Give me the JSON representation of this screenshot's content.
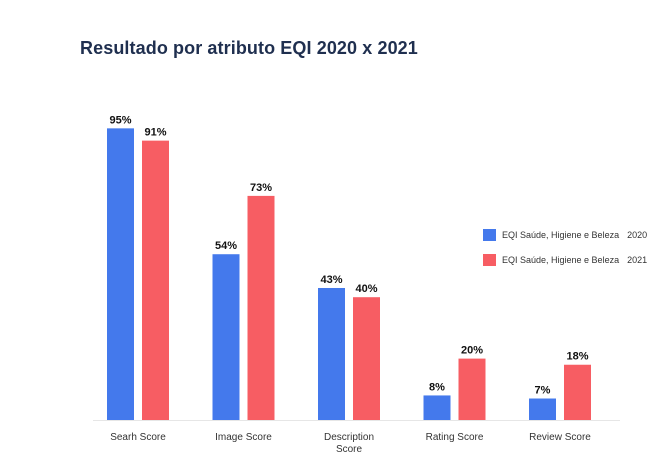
{
  "chart_data": {
    "type": "bar",
    "title": "Resultado por atributo EQI 2020 x 2021",
    "xlabel": "",
    "ylabel": "",
    "ylim": [
      0,
      100
    ],
    "grid": false,
    "categories": [
      "Searh Score",
      "Image Score",
      "Description Score",
      "Rating Score",
      "Review Score"
    ],
    "series": [
      {
        "name": "EQI Saúde, Higiene e Beleza",
        "year": "2020",
        "values": [
          95,
          54,
          43,
          8,
          7
        ],
        "labels": [
          "95%",
          "54%",
          "43%",
          "8%",
          "7%"
        ],
        "color": "#4479ec"
      },
      {
        "name": "EQI Saúde, Higiene e Beleza",
        "year": "2021",
        "values": [
          91,
          73,
          40,
          20,
          18
        ],
        "labels": [
          "91%",
          "73%",
          "40%",
          "20%",
          "18%"
        ],
        "color": "#f75d63"
      }
    ],
    "legend_position": "right"
  }
}
